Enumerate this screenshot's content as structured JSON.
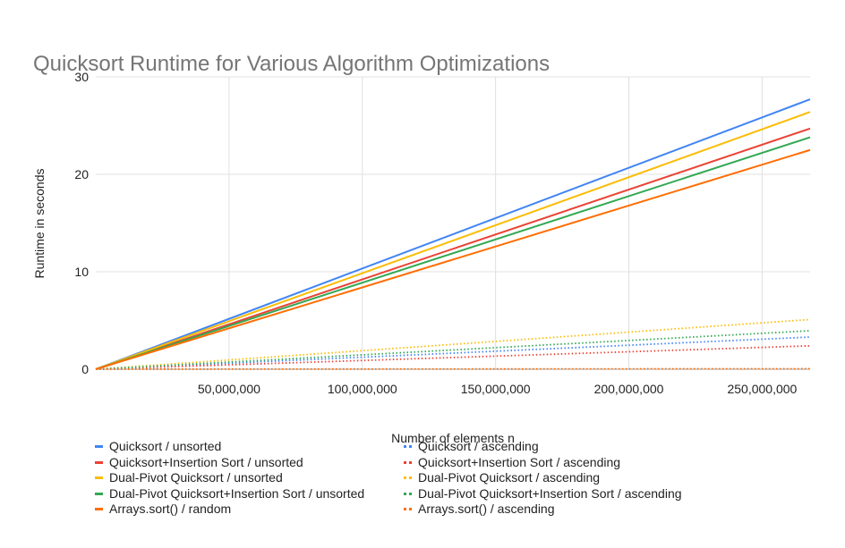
{
  "chart_data": {
    "type": "line",
    "title": "Quicksort Runtime for Various Algorithm Optimizations",
    "xlabel": "Number of elements n",
    "ylabel": "Runtime in seconds",
    "xlim": [
      0,
      268000000
    ],
    "ylim": [
      0,
      30
    ],
    "x_ticks": [
      50000000,
      100000000,
      150000000,
      200000000,
      250000000
    ],
    "x_tick_labels": [
      "50,000,000",
      "100,000,000",
      "150,000,000",
      "200,000,000",
      "250,000,000"
    ],
    "y_ticks": [
      0,
      10,
      20,
      30
    ],
    "y_tick_labels": [
      "0",
      "10",
      "20",
      "30"
    ],
    "grid": true,
    "legend_position": "bottom",
    "x": [
      0,
      268000000
    ],
    "series": [
      {
        "name": "Quicksort / unsorted",
        "color": "#4285f4",
        "style": "solid",
        "values": [
          0,
          27.7
        ]
      },
      {
        "name": "Quicksort+Insertion Sort / unsorted",
        "color": "#ea4335",
        "style": "solid",
        "values": [
          0,
          24.7
        ]
      },
      {
        "name": "Dual-Pivot Quicksort / unsorted",
        "color": "#fbbc04",
        "style": "solid",
        "values": [
          0,
          26.4
        ]
      },
      {
        "name": "Dual-Pivot Quicksort+Insertion Sort / unsorted",
        "color": "#34a853",
        "style": "solid",
        "values": [
          0,
          23.8
        ]
      },
      {
        "name": "Arrays.sort() / random",
        "color": "#ff6d01",
        "style": "solid",
        "values": [
          0,
          22.5
        ]
      },
      {
        "name": "Quicksort / ascending",
        "color": "#4285f4",
        "style": "dotted",
        "values": [
          0,
          3.3
        ]
      },
      {
        "name": "Quicksort+Insertion Sort / ascending",
        "color": "#ea4335",
        "style": "dotted",
        "values": [
          0,
          2.4
        ]
      },
      {
        "name": "Dual-Pivot Quicksort / ascending",
        "color": "#fbbc04",
        "style": "dotted",
        "values": [
          0,
          5.1
        ]
      },
      {
        "name": "Dual-Pivot Quicksort+Insertion Sort / ascending",
        "color": "#34a853",
        "style": "dotted",
        "values": [
          0,
          3.95
        ]
      },
      {
        "name": "Arrays.sort() / ascending",
        "color": "#ff6d01",
        "style": "dotted",
        "values": [
          0,
          0.05
        ]
      }
    ]
  }
}
